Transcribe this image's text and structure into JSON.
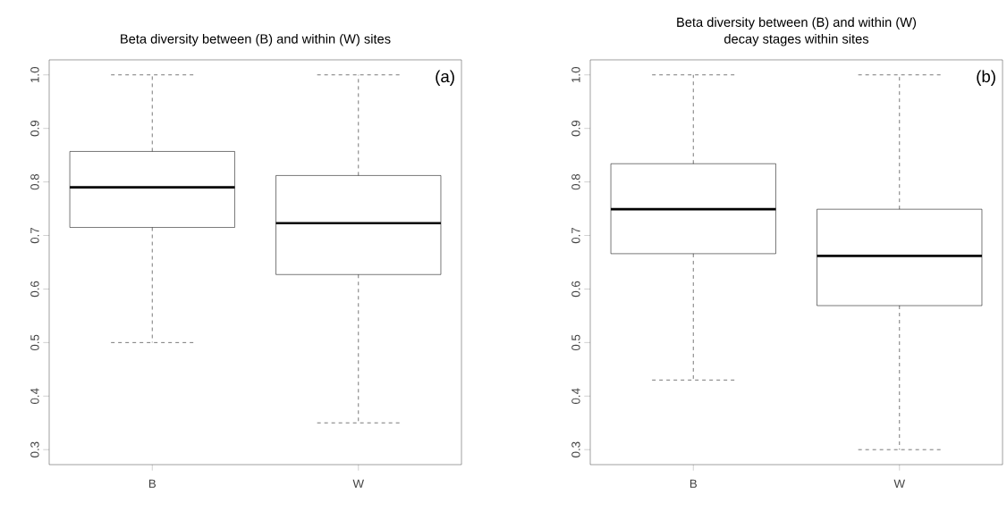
{
  "chart_data": [
    {
      "type": "box",
      "title": "Beta diversity between (B) and within (W) sites",
      "categories": [
        "B",
        "W"
      ],
      "boxes": [
        {
          "low": 0.5,
          "q1": 0.715,
          "median": 0.79,
          "q3": 0.857,
          "high": 1.0
        },
        {
          "low": 0.35,
          "q1": 0.627,
          "median": 0.723,
          "q3": 0.812,
          "high": 1.0
        }
      ],
      "ylim": [
        0.272,
        1.028
      ],
      "yticks": [
        0.3,
        0.4,
        0.5,
        0.6,
        0.7,
        0.8,
        0.9,
        {
          "value": 1,
          "label": "1.0"
        }
      ],
      "annotations": [
        "(a)"
      ],
      "grid": false
    },
    {
      "type": "box",
      "title": "Beta diversity between (B) and within (W)\ndecay stages within sites",
      "categories": [
        "B",
        "W"
      ],
      "boxes": [
        {
          "low": 0.43,
          "q1": 0.666,
          "median": 0.749,
          "q3": 0.834,
          "high": 1.0
        },
        {
          "low": 0.3,
          "q1": 0.569,
          "median": 0.662,
          "q3": 0.749,
          "high": 1.0
        }
      ],
      "ylim": [
        0.272,
        1.028
      ],
      "yticks": [
        0.3,
        0.4,
        0.5,
        0.6,
        0.7,
        0.8,
        0.9,
        {
          "value": 1,
          "label": "1.0"
        }
      ],
      "annotations": [
        "(b)"
      ],
      "grid": false
    }
  ]
}
